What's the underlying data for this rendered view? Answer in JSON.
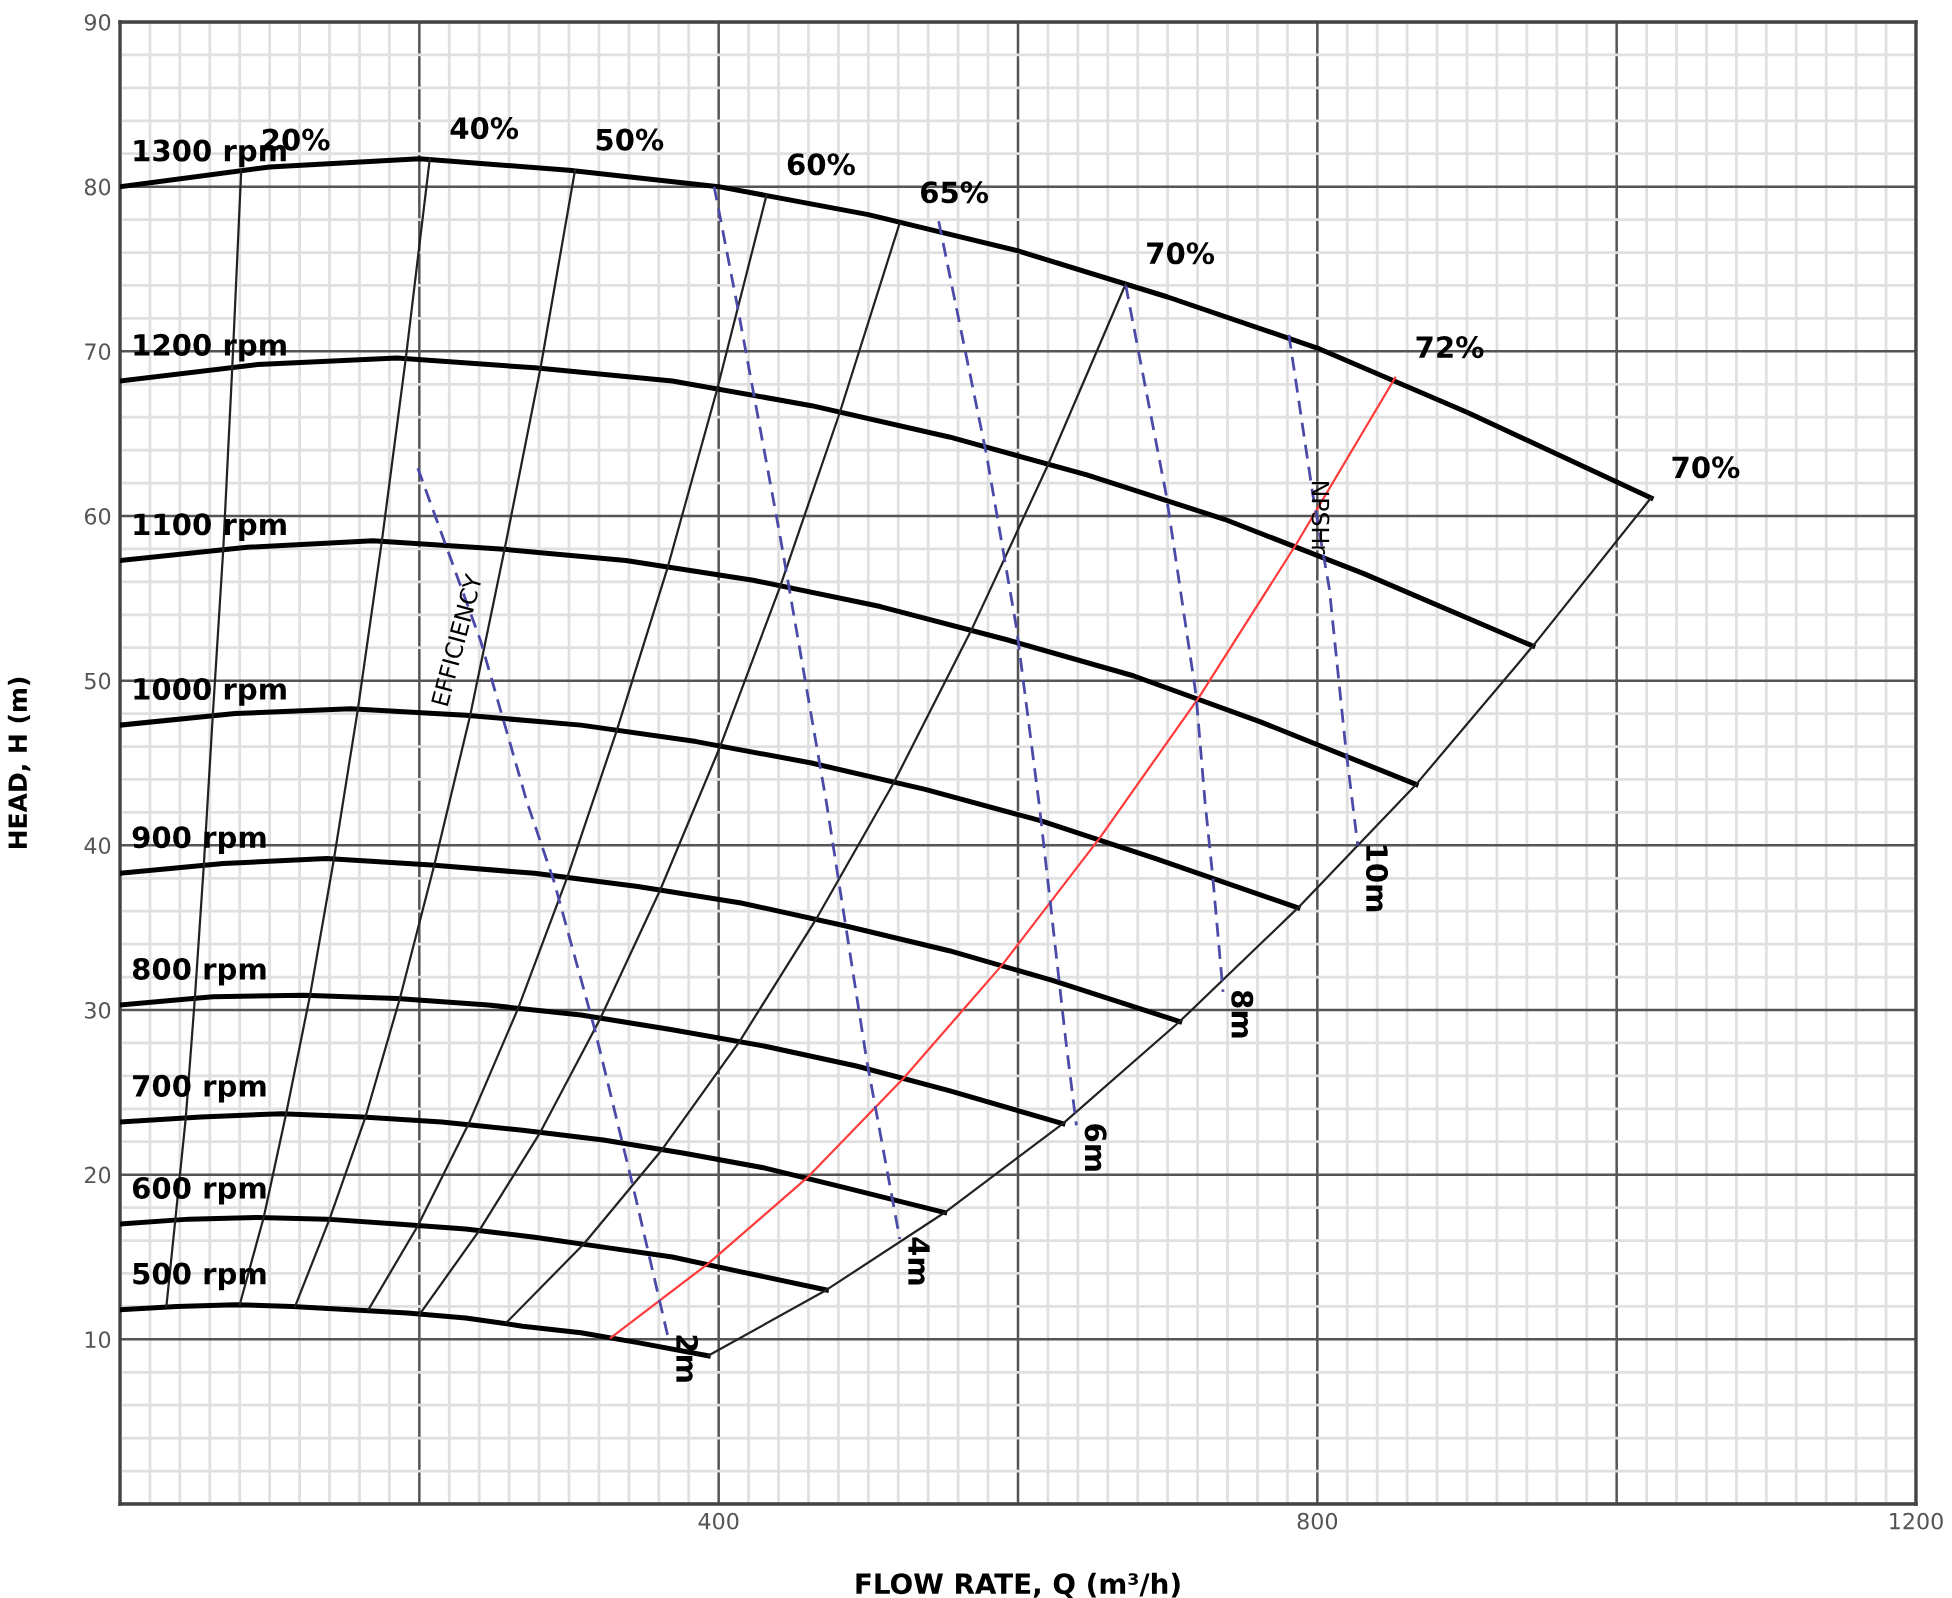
{
  "chart_data": {
    "type": "line",
    "xlabel": "FLOW RATE, Q (m³/h)",
    "ylabel": "HEAD, H (m)",
    "xlim": [
      0,
      1200
    ],
    "ylim": [
      0,
      90
    ],
    "xticks": [
      {
        "value": 0,
        "label": null
      },
      {
        "value": 200,
        "label": null
      },
      400,
      {
        "value": 600,
        "label": null
      },
      800,
      {
        "value": 1000,
        "label": null
      },
      1200
    ],
    "yticks": [
      {
        "value": 0,
        "label": null
      },
      10,
      20,
      30,
      40,
      50,
      60,
      70,
      80,
      90
    ],
    "grid": true,
    "legend": false,
    "marker": "none",
    "series": [
      {
        "name": "1300 rpm",
        "color": "#000000",
        "line_style": "solid",
        "x": [
          0,
          100,
          200,
          300,
          400,
          500,
          600,
          700,
          800,
          900,
          1023
        ],
        "values": [
          80.0,
          81.2,
          81.7,
          81.0,
          80.0,
          78.3,
          76.1,
          73.3,
          70.2,
          66.3,
          61.1
        ]
      },
      {
        "name": "1200 rpm",
        "color": "#000000",
        "line_style": "solid",
        "x": [
          0,
          92,
          185,
          277,
          369,
          462,
          554,
          646,
          738,
          831,
          944
        ],
        "values": [
          68.2,
          69.2,
          69.6,
          69.0,
          68.2,
          66.7,
          64.8,
          62.5,
          59.8,
          56.5,
          52.1
        ]
      },
      {
        "name": "1100 rpm",
        "color": "#000000",
        "line_style": "solid",
        "x": [
          0,
          85,
          169,
          254,
          338,
          423,
          508,
          592,
          677,
          762,
          866
        ],
        "values": [
          57.3,
          58.1,
          58.5,
          58.0,
          57.3,
          56.1,
          54.5,
          52.5,
          50.3,
          47.5,
          43.7
        ]
      },
      {
        "name": "1000 rpm",
        "color": "#000000",
        "line_style": "solid",
        "x": [
          0,
          77,
          154,
          231,
          308,
          385,
          462,
          538,
          615,
          692,
          787
        ],
        "values": [
          47.3,
          48.0,
          48.3,
          47.9,
          47.3,
          46.3,
          45.0,
          43.4,
          41.5,
          39.2,
          36.2
        ]
      },
      {
        "name": "900 rpm",
        "color": "#000000",
        "line_style": "solid",
        "x": [
          0,
          69,
          138,
          208,
          277,
          346,
          415,
          485,
          554,
          623,
          708
        ],
        "values": [
          38.3,
          38.9,
          39.2,
          38.8,
          38.3,
          37.5,
          36.5,
          35.1,
          33.6,
          31.8,
          29.3
        ]
      },
      {
        "name": "800 rpm",
        "color": "#000000",
        "line_style": "solid",
        "x": [
          0,
          62,
          123,
          185,
          246,
          308,
          369,
          431,
          492,
          554,
          630
        ],
        "values": [
          30.3,
          30.8,
          30.9,
          30.7,
          30.3,
          29.7,
          28.8,
          27.8,
          26.6,
          25.1,
          23.1
        ]
      },
      {
        "name": "700 rpm",
        "color": "#000000",
        "line_style": "solid",
        "x": [
          0,
          54,
          108,
          162,
          215,
          269,
          323,
          377,
          431,
          485,
          551
        ],
        "values": [
          23.2,
          23.5,
          23.7,
          23.5,
          23.2,
          22.7,
          22.1,
          21.3,
          20.4,
          19.2,
          17.7
        ]
      },
      {
        "name": "600 rpm",
        "color": "#000000",
        "line_style": "solid",
        "x": [
          0,
          46,
          92,
          138,
          185,
          231,
          277,
          323,
          369,
          415,
          472
        ],
        "values": [
          17.0,
          17.3,
          17.4,
          17.3,
          17.0,
          16.7,
          16.2,
          15.6,
          15.0,
          14.1,
          13.0
        ]
      },
      {
        "name": "500 rpm",
        "color": "#000000",
        "line_style": "solid",
        "x": [
          0,
          38,
          77,
          115,
          154,
          192,
          231,
          269,
          308,
          346,
          393
        ],
        "values": [
          11.8,
          12.0,
          12.1,
          12.0,
          11.8,
          11.6,
          11.3,
          10.8,
          10.4,
          9.8,
          9.0
        ]
      },
      {
        "name": "20%",
        "color": "#222222",
        "line_style": "solid",
        "x": [
          81,
          75,
          69,
          62,
          56,
          50,
          44,
          37,
          31
        ],
        "values": [
          81.0,
          69.0,
          58.0,
          47.9,
          38.8,
          30.7,
          23.5,
          17.3,
          12.0
        ]
      },
      {
        "name": "40%",
        "color": "#222222",
        "line_style": "solid",
        "x": [
          207,
          191,
          175,
          159,
          143,
          127,
          111,
          96,
          80
        ],
        "values": [
          81.7,
          69.6,
          58.5,
          48.3,
          39.2,
          30.9,
          23.7,
          17.4,
          12.1
        ]
      },
      {
        "name": "50%",
        "color": "#222222",
        "line_style": "solid",
        "x": [
          304,
          281,
          257,
          234,
          210,
          187,
          164,
          140,
          117
        ],
        "values": [
          81.0,
          69.0,
          58.0,
          47.9,
          38.8,
          30.7,
          23.5,
          17.3,
          12.0
        ]
      },
      {
        "name": "60%",
        "color": "#222222",
        "line_style": "solid",
        "x": [
          432,
          399,
          366,
          332,
          299,
          266,
          233,
          199,
          166
        ],
        "values": [
          79.5,
          67.7,
          56.9,
          47.0,
          38.1,
          30.1,
          23.1,
          16.9,
          11.8
        ]
      },
      {
        "name": "65%",
        "color": "#222222",
        "line_style": "solid",
        "x": [
          521,
          481,
          441,
          401,
          361,
          321,
          281,
          240,
          200
        ],
        "values": [
          77.8,
          66.3,
          55.7,
          46.0,
          37.3,
          29.5,
          22.6,
          16.6,
          11.5
        ]
      },
      {
        "name": "70%",
        "color": "#222222",
        "line_style": "solid",
        "x": [
          672,
          620,
          569,
          517,
          465,
          414,
          362,
          310,
          258
        ],
        "values": [
          74.1,
          63.1,
          53.1,
          43.8,
          35.5,
          28.1,
          21.5,
          15.8,
          11.0
        ]
      },
      {
        "name": "72%",
        "color": "#ff3b3b",
        "line_style": "solid",
        "x": [
          852,
          786,
          721,
          655,
          590,
          524,
          459,
          393,
          328
        ],
        "values": [
          68.4,
          58.3,
          49.0,
          40.5,
          32.8,
          25.9,
          19.8,
          14.6,
          10.1
        ]
      },
      {
        "name": "70%",
        "color": "#222222",
        "line_style": "solid",
        "x": [
          1023,
          944,
          866,
          787,
          708,
          630,
          551,
          472,
          393
        ],
        "values": [
          61.1,
          52.1,
          43.7,
          36.2,
          29.3,
          23.1,
          17.7,
          13.0,
          9.0
        ]
      },
      {
        "name": "2m",
        "color": "#4a4aa8",
        "line_style": "dashed",
        "x": [
          199,
          241,
          272,
          290,
          317,
          343,
          366
        ],
        "values": [
          62.9,
          52.4,
          42.6,
          37.8,
          28.9,
          19.2,
          10.2
        ]
      },
      {
        "name": "4m",
        "color": "#4a4aa8",
        "line_style": "dashed",
        "x": [
          397,
          412,
          441,
          472,
          499,
          521
        ],
        "values": [
          80.0,
          73.0,
          58.8,
          42.6,
          26.9,
          16.1
        ]
      },
      {
        "name": "6m",
        "color": "#4a4aa8",
        "line_style": "dashed",
        "x": [
          547,
          579,
          599,
          614,
          621,
          632,
          639
        ],
        "values": [
          77.9,
          63.7,
          53.2,
          42.6,
          37.0,
          28.1,
          23.0
        ]
      },
      {
        "name": "8m",
        "color": "#4a4aa8",
        "line_style": "dashed",
        "x": [
          672,
          699,
          719,
          725,
          730,
          737
        ],
        "values": [
          74.0,
          61.3,
          49.1,
          42.6,
          38.2,
          31.1
        ]
      },
      {
        "name": "10m",
        "color": "#4a4aa8",
        "line_style": "dashed",
        "x": [
          781,
          797,
          808,
          819,
          827
        ],
        "values": [
          71.0,
          61.3,
          55.6,
          45.9,
          40.0
        ]
      }
    ],
    "annotations": [
      {
        "text": "EFFICIENCY",
        "x": 241,
        "y": 52.4
      },
      {
        "text": "NPSHr",
        "x": 797,
        "y": 61.3
      }
    ]
  }
}
